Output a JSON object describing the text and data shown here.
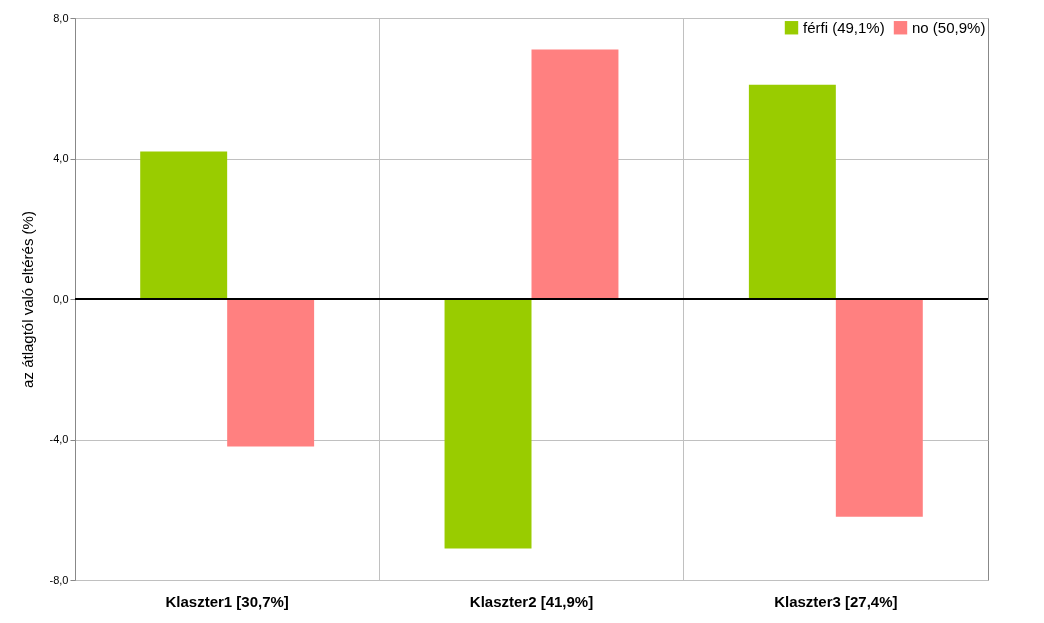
{
  "chart_data": {
    "type": "bar",
    "ylabel": "az átlagtól való eltérés (%)",
    "categories": [
      "Klaszter1 [30,7%]",
      "Klaszter2 [41,9%]",
      "Klaszter3 [27,4%]"
    ],
    "series": [
      {
        "name": "férfi (49,1%)",
        "color": "#99cc00",
        "values": [
          4.2,
          -7.1,
          6.1
        ]
      },
      {
        "name": "no (50,9%)",
        "color": "#ff8080",
        "values": [
          -4.2,
          7.1,
          -6.2
        ]
      }
    ],
    "ylim": [
      -8,
      8
    ],
    "yticks": [
      {
        "value": -8,
        "label": "-8,0"
      },
      {
        "value": -4,
        "label": "-4,0"
      },
      {
        "value": 0,
        "label": "0,0"
      },
      {
        "value": 4,
        "label": "4,0"
      },
      {
        "value": 8,
        "label": "8,0"
      }
    ],
    "grid": true,
    "legend": "top right"
  }
}
